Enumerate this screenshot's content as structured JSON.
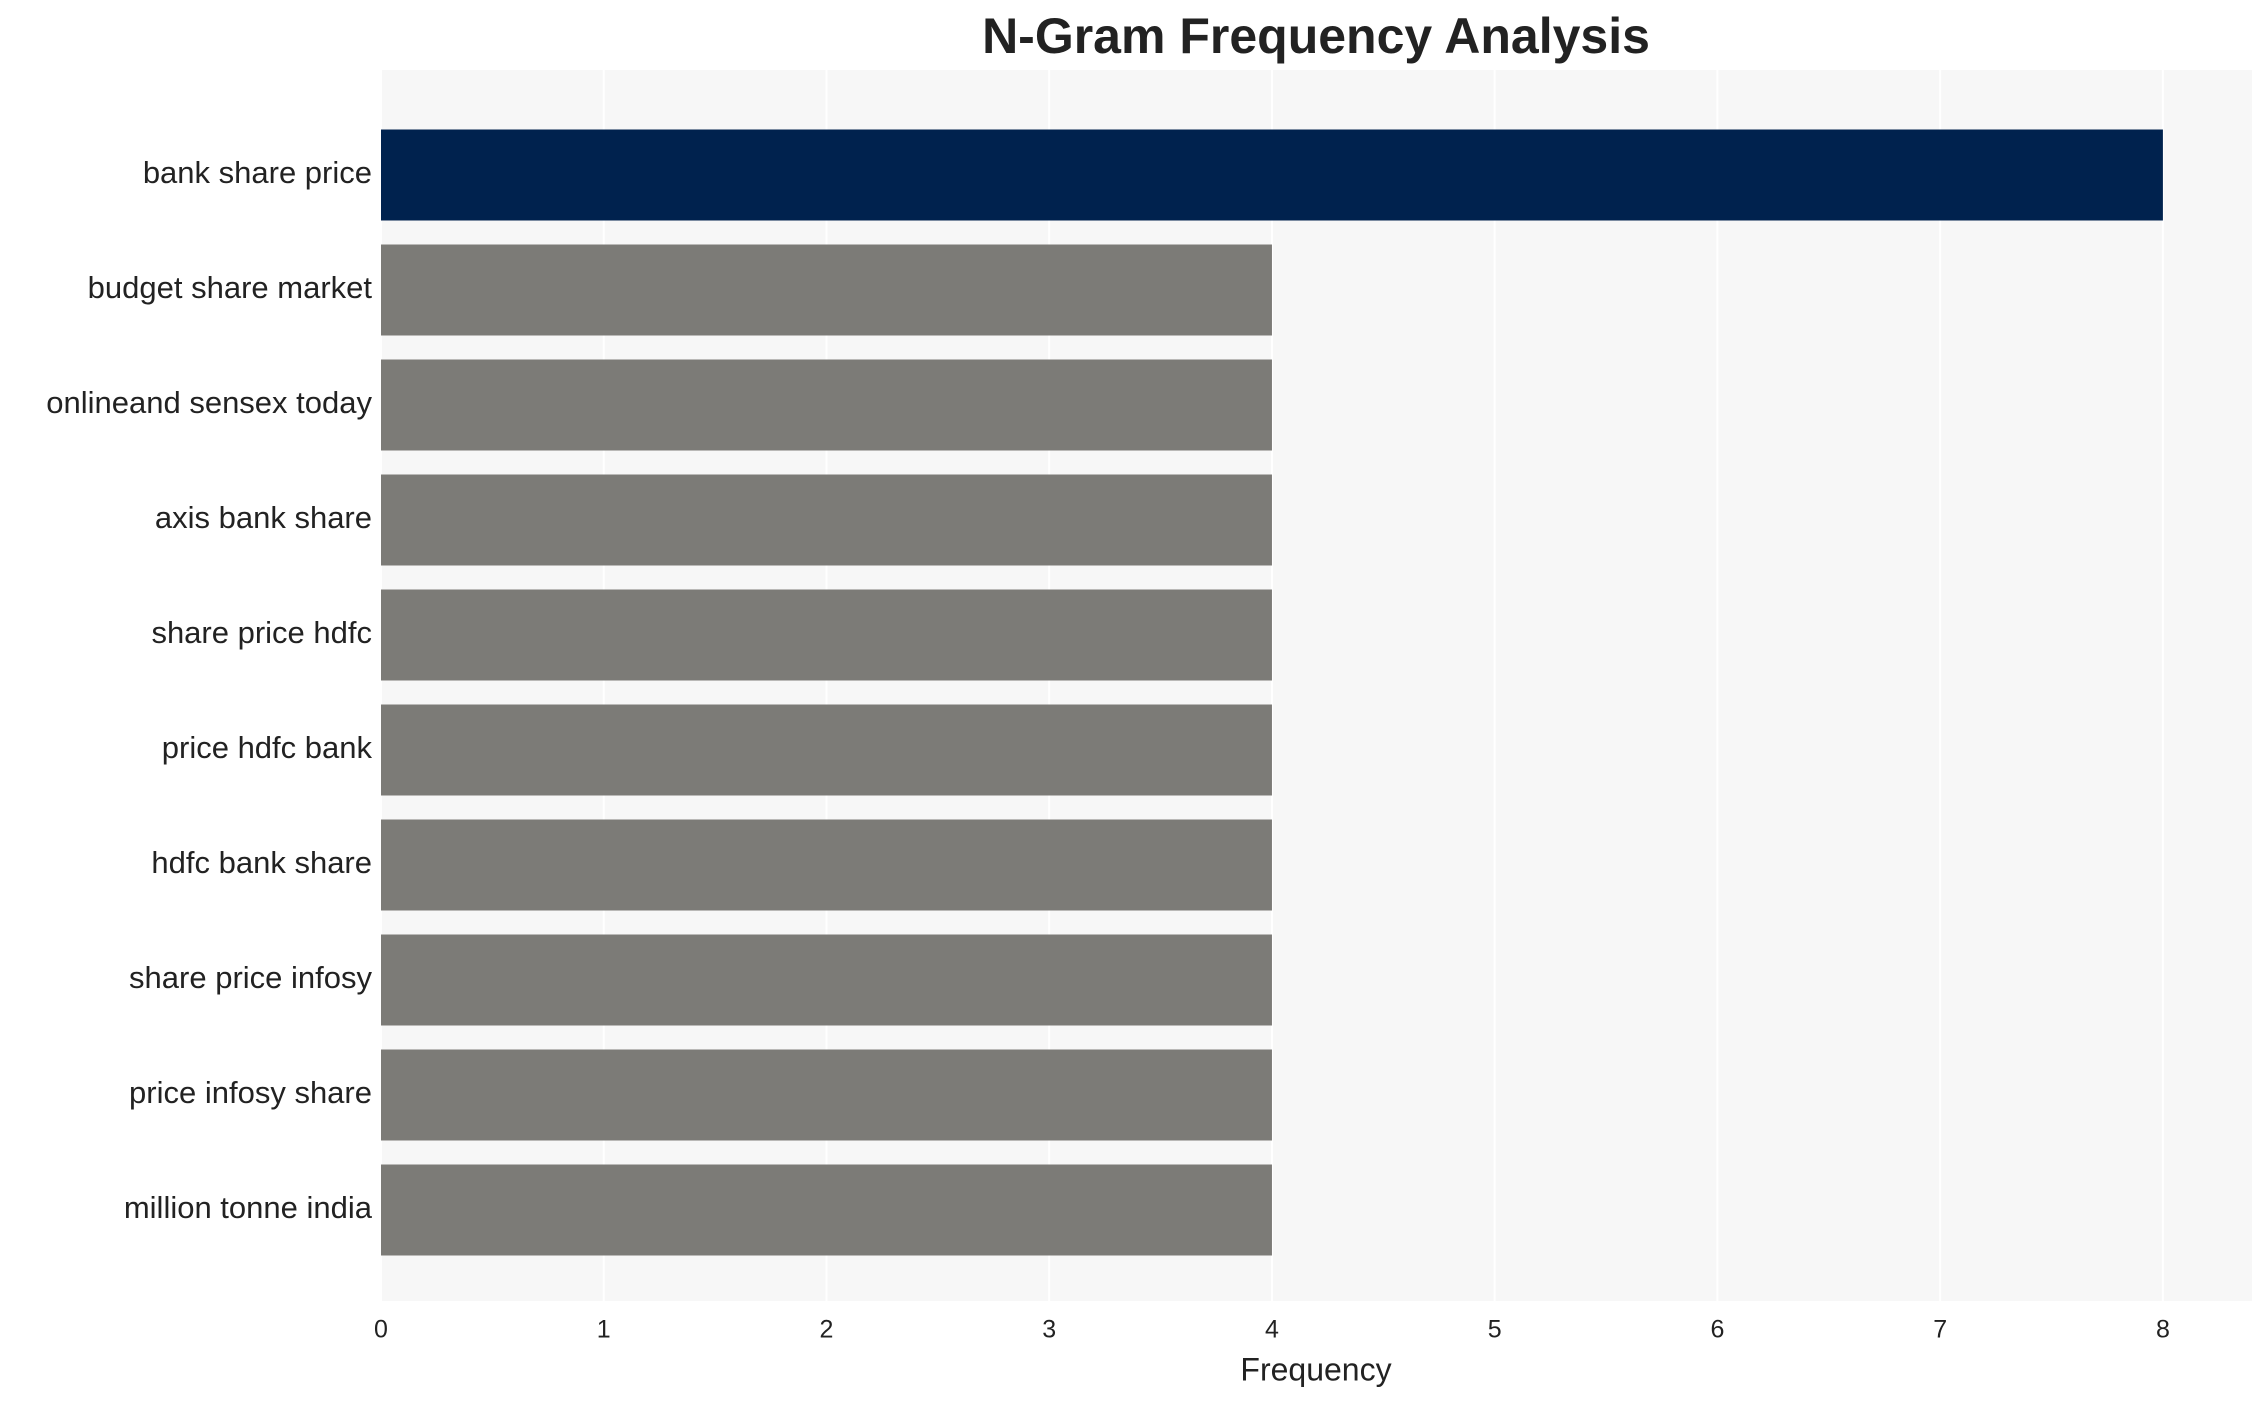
{
  "chart_data": {
    "type": "barh",
    "title": "N-Gram Frequency Analysis",
    "x_label": "Frequency",
    "categories": [
      "bank share price",
      "budget share market",
      "onlineand sensex today",
      "axis bank share",
      "share price hdfc",
      "price hdfc bank",
      "hdfc bank share",
      "share price infosy",
      "price infosy share",
      "million tonne india"
    ],
    "values": [
      8,
      4,
      4,
      4,
      4,
      4,
      4,
      4,
      4,
      4
    ],
    "colors": [
      "#00224e",
      "#7c7b77",
      "#7c7b77",
      "#7c7b77",
      "#7c7b77",
      "#7c7b77",
      "#7c7b77",
      "#7c7b77",
      "#7c7b77",
      "#7c7b77"
    ],
    "xlim": [
      0,
      8.4
    ],
    "xticks": [
      0,
      1,
      2,
      3,
      4,
      5,
      6,
      7,
      8
    ],
    "grid": true
  }
}
